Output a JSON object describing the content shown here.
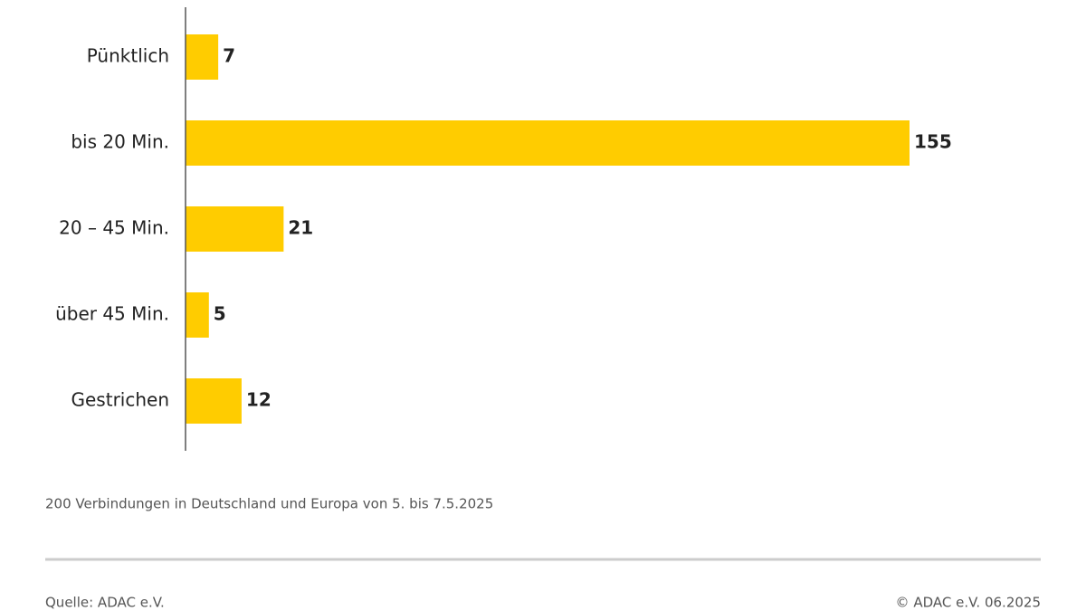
{
  "chart_data": {
    "type": "bar",
    "orientation": "horizontal",
    "categories": [
      "Pünktlich",
      "bis 20 Min.",
      "20 – 45 Min.",
      "über 45 Min.",
      "Gestrichen"
    ],
    "values": [
      7,
      155,
      21,
      5,
      12
    ],
    "color": "#ffcc00",
    "note": "200 Verbindungen in Deutschland und Europa von 5. bis 7.5.2025",
    "source": "Quelle: ADAC e.V.",
    "copyright": "© ADAC e.V. 06.2025"
  }
}
